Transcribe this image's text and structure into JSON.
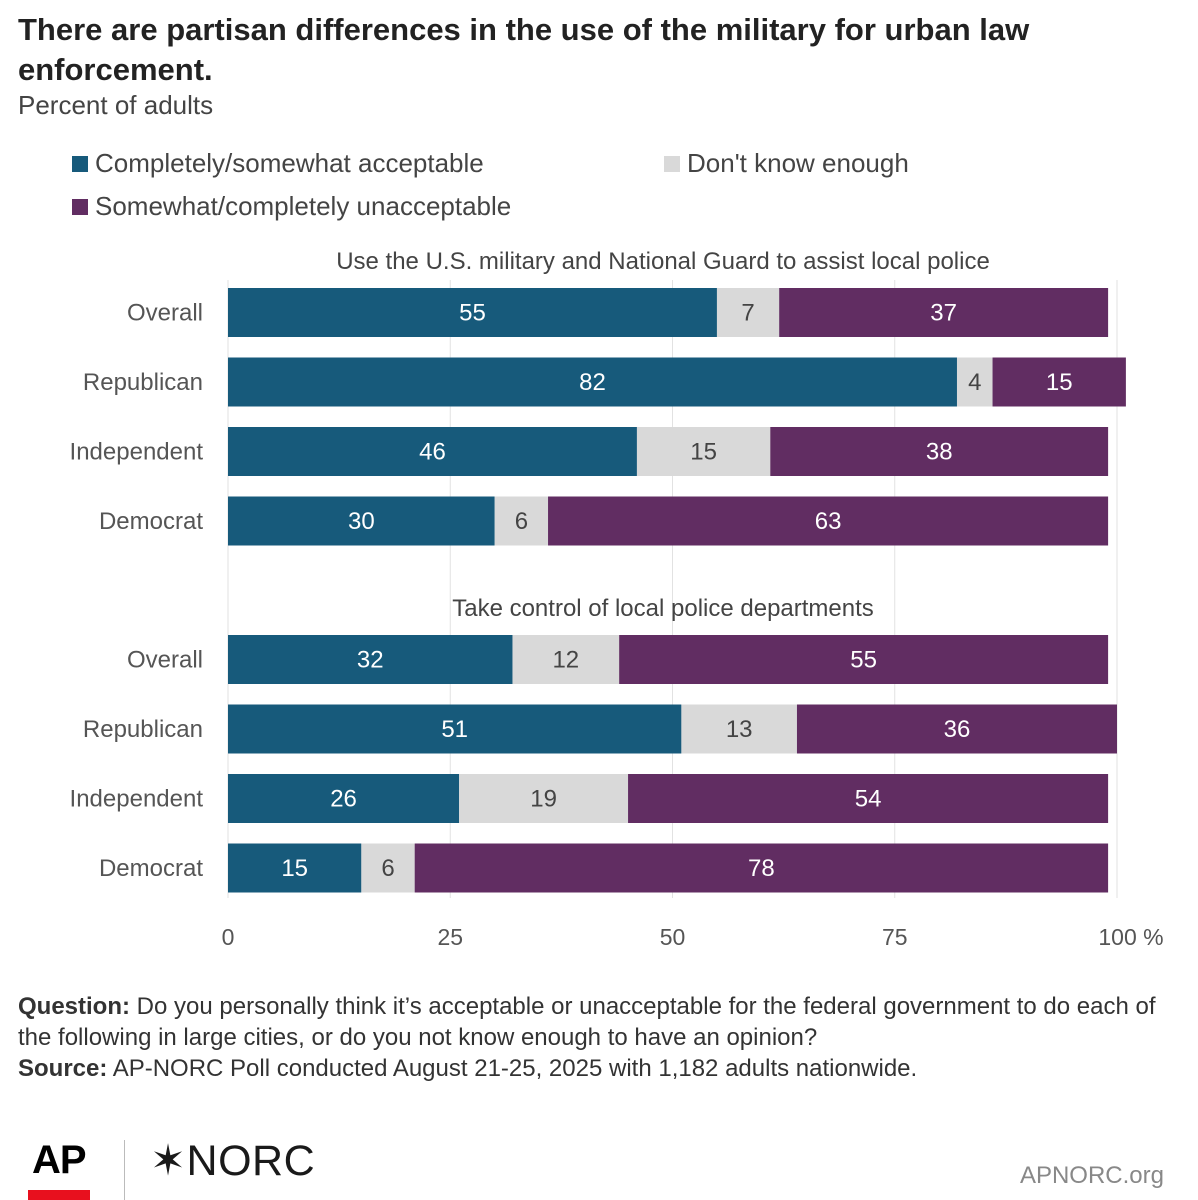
{
  "title": "There are partisan differences in the use of the military for urban law enforcement.",
  "subtitle": "Percent of adults",
  "legend": [
    {
      "label": "Completely/somewhat acceptable",
      "color": "#175a7b"
    },
    {
      "label": "Don't know enough",
      "color": "#d9d9d9"
    },
    {
      "label": "Somewhat/completely unacceptable",
      "color": "#612d62"
    }
  ],
  "chart_data": {
    "type": "bar",
    "orientation": "horizontal",
    "stacked": true,
    "xlim": [
      0,
      100
    ],
    "x_ticks": [
      "0",
      "25",
      "50",
      "75",
      "100 %"
    ],
    "grid": true,
    "panels": [
      {
        "title": "Use the U.S. military and National Guard to assist local police",
        "categories": [
          "Overall",
          "Republican",
          "Independent",
          "Democrat"
        ],
        "series": [
          {
            "name": "Completely/somewhat acceptable",
            "values": [
              55,
              82,
              46,
              30
            ]
          },
          {
            "name": "Don't know enough",
            "values": [
              7,
              4,
              15,
              6
            ]
          },
          {
            "name": "Somewhat/completely unacceptable",
            "values": [
              37,
              15,
              38,
              63
            ]
          }
        ]
      },
      {
        "title": "Take control of local police departments",
        "categories": [
          "Overall",
          "Republican",
          "Independent",
          "Democrat"
        ],
        "series": [
          {
            "name": "Completely/somewhat acceptable",
            "values": [
              32,
              51,
              26,
              15
            ]
          },
          {
            "name": "Don't know enough",
            "values": [
              12,
              13,
              19,
              6
            ]
          },
          {
            "name": "Somewhat/completely unacceptable",
            "values": [
              55,
              36,
              54,
              78
            ]
          }
        ]
      }
    ]
  },
  "footer": {
    "question_label": "Question:",
    "question_text": " Do you personally think it’s acceptable or unacceptable for the federal government to do each of the following in large cities, or do you not know enough to have an opinion?",
    "source_label": "Source:",
    "source_text": " AP-NORC Poll conducted August 21-25, 2025 with 1,182 adults nationwide."
  },
  "logos": {
    "ap": "AP",
    "norc": "NORC",
    "norc_icon": "star-burst-icon"
  },
  "site": "APNORC.org"
}
